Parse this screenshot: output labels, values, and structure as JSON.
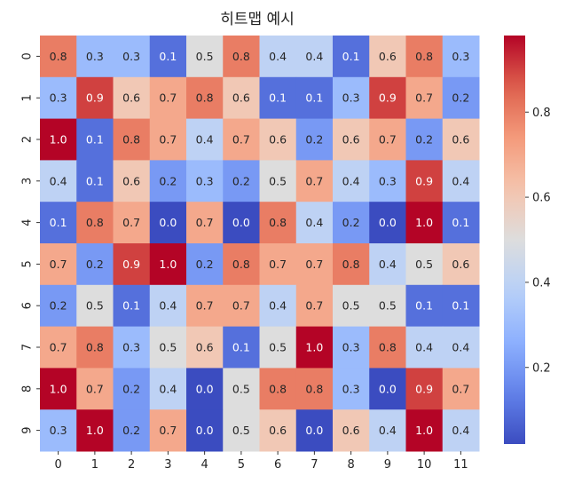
{
  "chart_data": {
    "type": "heatmap",
    "title": "히트맵 예시",
    "xlabel": "",
    "ylabel": "",
    "x_categories": [
      "0",
      "1",
      "2",
      "3",
      "4",
      "5",
      "6",
      "7",
      "8",
      "9",
      "10",
      "11"
    ],
    "y_categories": [
      "0",
      "1",
      "2",
      "3",
      "4",
      "5",
      "6",
      "7",
      "8",
      "9"
    ],
    "values": [
      [
        0.8,
        0.3,
        0.3,
        0.1,
        0.5,
        0.8,
        0.4,
        0.4,
        0.1,
        0.6,
        0.8,
        0.3
      ],
      [
        0.3,
        0.9,
        0.6,
        0.7,
        0.8,
        0.6,
        0.1,
        0.1,
        0.3,
        0.9,
        0.7,
        0.2
      ],
      [
        1.0,
        0.1,
        0.8,
        0.7,
        0.4,
        0.7,
        0.6,
        0.2,
        0.6,
        0.7,
        0.2,
        0.6
      ],
      [
        0.4,
        0.1,
        0.6,
        0.2,
        0.3,
        0.2,
        0.5,
        0.7,
        0.4,
        0.3,
        0.9,
        0.4
      ],
      [
        0.1,
        0.8,
        0.7,
        0.0,
        0.7,
        0.0,
        0.8,
        0.4,
        0.2,
        0.0,
        1.0,
        0.1
      ],
      [
        0.7,
        0.2,
        0.9,
        1.0,
        0.2,
        0.8,
        0.7,
        0.7,
        0.8,
        0.4,
        0.5,
        0.6
      ],
      [
        0.2,
        0.5,
        0.1,
        0.4,
        0.7,
        0.7,
        0.4,
        0.7,
        0.5,
        0.5,
        0.1,
        0.1
      ],
      [
        0.7,
        0.8,
        0.3,
        0.5,
        0.6,
        0.1,
        0.5,
        1.0,
        0.3,
        0.8,
        0.4,
        0.4
      ],
      [
        1.0,
        0.7,
        0.2,
        0.4,
        0.0,
        0.5,
        0.8,
        0.8,
        0.3,
        0.0,
        0.9,
        0.7
      ],
      [
        0.3,
        1.0,
        0.2,
        0.7,
        0.0,
        0.5,
        0.6,
        0.0,
        0.6,
        0.4,
        1.0,
        0.4
      ]
    ],
    "colormap": "coolwarm",
    "vmin": 0.02,
    "vmax": 0.98,
    "colorbar_ticks": [
      "0.2",
      "0.4",
      "0.6",
      "0.8"
    ],
    "colorbar_tick_values": [
      0.2,
      0.4,
      0.6,
      0.8
    ],
    "annotated": true,
    "grid": false
  }
}
